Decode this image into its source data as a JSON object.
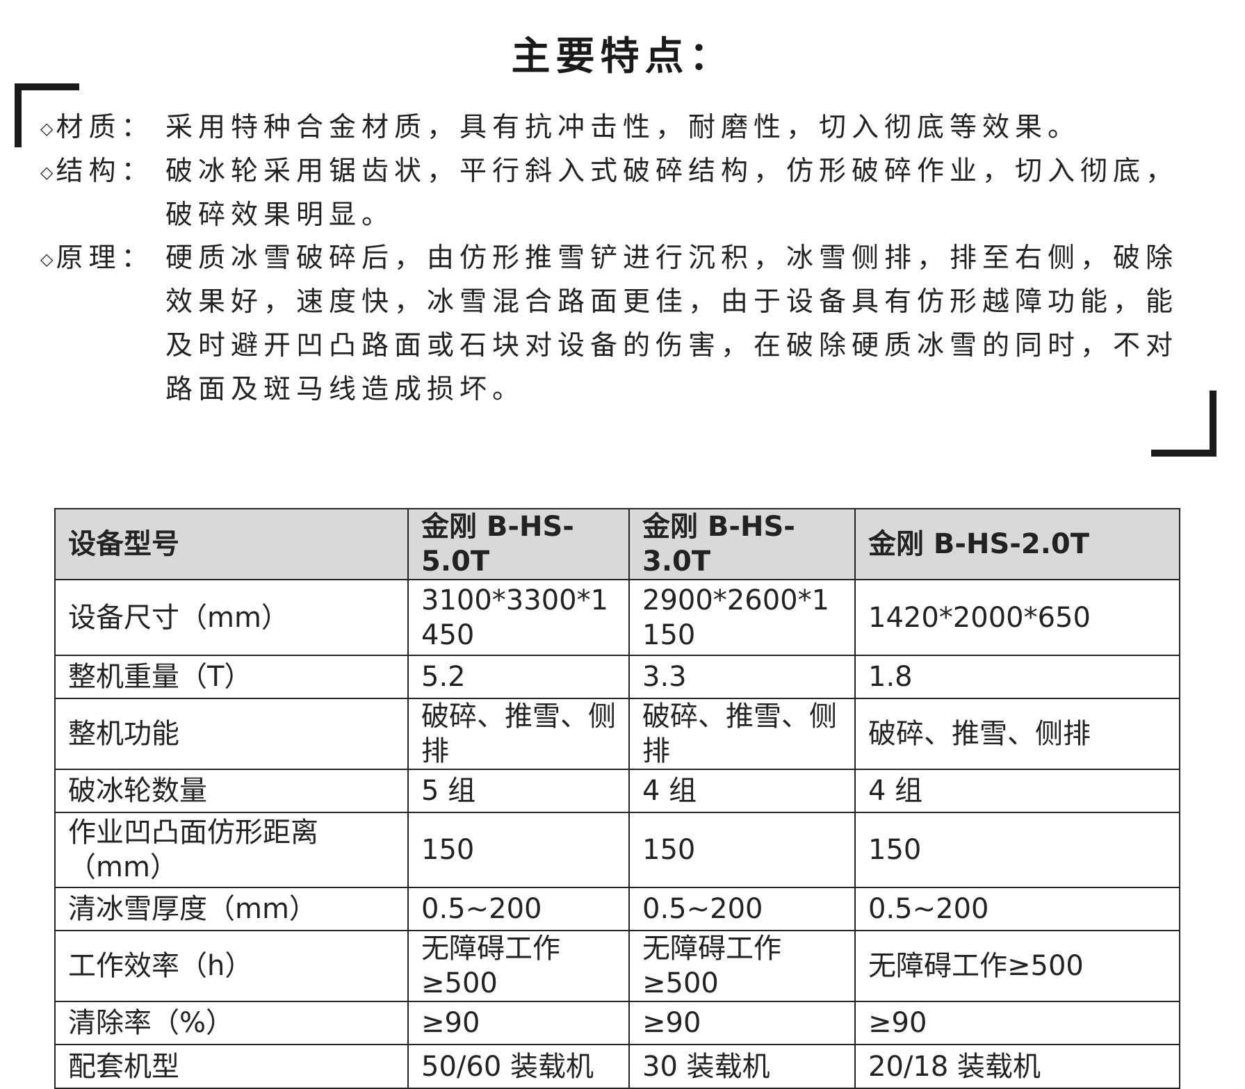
{
  "title": "主要特点：",
  "features": [
    {
      "label": "材质：",
      "text": "采用特种合金材质，具有抗冲击性，耐磨性，切入彻底等效果。"
    },
    {
      "label": "结构：",
      "text": "破冰轮采用锯齿状，平行斜入式破碎结构，仿形破碎作业，切入彻底，破碎效果明显。"
    },
    {
      "label": "原理：",
      "text": "硬质冰雪破碎后，由仿形推雪铲进行沉积，冰雪侧排，排至右侧，破除效果好，速度快，冰雪混合路面更佳，由于设备具有仿形越障功能，能及时避开凹凸路面或石块对设备的伤害，在破除硬质冰雪的同时，不对路面及斑马线造成损坏。"
    }
  ],
  "table": {
    "headers": [
      "设备型号",
      "金刚 B-HS-5.0T",
      "金刚 B-HS-3.0T",
      "金刚 B-HS-2.0T"
    ],
    "rows": [
      [
        "设备尺寸（mm）",
        "3100*3300*1450",
        "2900*2600*1150",
        "1420*2000*650"
      ],
      [
        "整机重量（T）",
        "5.2",
        "3.3",
        "1.8"
      ],
      [
        "整机功能",
        "破碎、推雪、侧排",
        "破碎、推雪、侧排",
        "破碎、推雪、侧排"
      ],
      [
        "破冰轮数量",
        "5 组",
        "4 组",
        "4 组"
      ],
      [
        "作业凹凸面仿形距离（mm）",
        "150",
        "150",
        "150"
      ],
      [
        "清冰雪厚度（mm）",
        "0.5~200",
        "0.5~200",
        "0.5~200"
      ],
      [
        "工作效率（h）",
        "无障碍工作≥500",
        "无障碍工作≥500",
        "无障碍工作≥500"
      ],
      [
        "清除率（%）",
        "≥90",
        "≥90",
        "≥90"
      ],
      [
        "配套机型",
        "50/60 装载机",
        "30 装载机",
        "20/18 装载机"
      ]
    ]
  },
  "colors": {
    "header_bg": "#d9d9d9",
    "text": "#222222"
  }
}
